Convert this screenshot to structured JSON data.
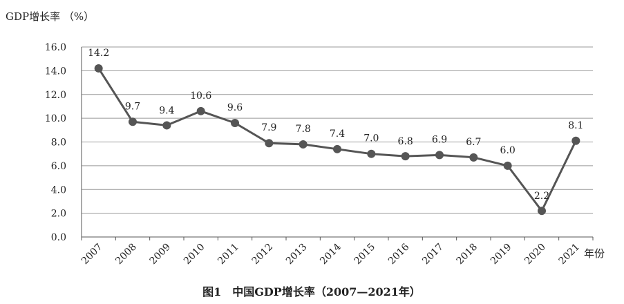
{
  "chart_data": {
    "type": "line",
    "title": "图1　中国GDP增长率（2007—2021年）",
    "ylabel": "GDP增长率 （%）",
    "xlabel": "年份",
    "categories": [
      "2007",
      "2008",
      "2009",
      "2010",
      "2011",
      "2012",
      "2013",
      "2014",
      "2015",
      "2016",
      "2017",
      "2018",
      "2019",
      "2020",
      "2021"
    ],
    "series": [
      {
        "values": [
          14.2,
          9.7,
          9.4,
          10.6,
          9.6,
          7.9,
          7.8,
          7.4,
          7.0,
          6.8,
          6.9,
          6.7,
          6.0,
          2.2,
          8.1
        ],
        "labels": [
          "14.2",
          "9.7",
          "9.4",
          "10.6",
          "9.6",
          "7.9",
          "7.8",
          "7.4",
          "7.0",
          "6.8",
          "6.9",
          "6.7",
          "6.0",
          "2.2",
          "8.1"
        ]
      }
    ],
    "ylim": [
      0,
      16
    ],
    "yticks": [
      "0.0",
      "2.0",
      "4.0",
      "6.0",
      "8.0",
      "10.0",
      "12.0",
      "14.0",
      "16.0"
    ],
    "grid": true,
    "colors": {
      "line": "#555555",
      "marker": "#555555",
      "grid": "#999999",
      "axis": "#555555",
      "text": "#222222"
    }
  }
}
